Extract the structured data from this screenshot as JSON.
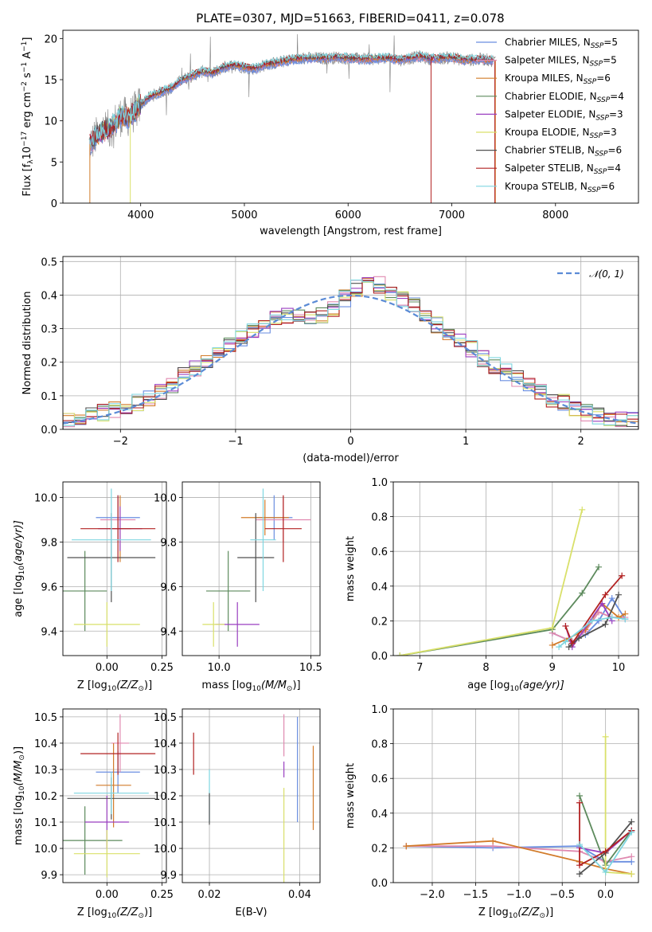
{
  "chart_data": [
    {
      "type": "line",
      "title": "PLATE=0307, MJD=51663, FIBERID=0411, z=0.078",
      "xlabel": "wavelength [Angstrom, rest frame]",
      "ylabel_main": "Flux [f",
      "ylabel_sub": "λ",
      "ylabel_rest": "10",
      "ylabel_exp": "−17",
      "ylabel_tail": " erg cm",
      "ylabel_exp2": "−2",
      "ylabel_tail2": " s",
      "ylabel_exp3": "−1",
      "ylabel_tail3": " A",
      "ylabel_exp4": "−1",
      "ylabel_end": "]",
      "xlim": [
        3250,
        8800
      ],
      "ylim": [
        0,
        21
      ],
      "xticks": [
        "4000",
        "5000",
        "6000",
        "7000",
        "8000"
      ],
      "xtick_values": [
        4000,
        5000,
        6000,
        7000,
        8000
      ],
      "yticks": [
        "0",
        "5",
        "10",
        "15",
        "20"
      ],
      "ytick_values": [
        0,
        5,
        10,
        15,
        20
      ],
      "grid": false,
      "legend_position": "top-right",
      "data_sketch": {
        "wavelength": [
          3500,
          3600,
          3700,
          3800,
          3900,
          4000,
          4100,
          4200,
          4300,
          4400,
          4500,
          4600,
          4700,
          4800,
          4900,
          5000,
          5100,
          5200,
          5300,
          5400,
          5500,
          5600,
          5700,
          5800,
          5900,
          6000,
          6100,
          6200,
          6300,
          6400,
          6500,
          6600,
          6700,
          6800,
          6900,
          7000,
          7100,
          7200,
          7300,
          7400
        ],
        "flux": [
          7,
          8.5,
          9,
          10.5,
          10.5,
          12,
          13,
          13.5,
          14,
          15,
          15.5,
          16,
          15.8,
          16.5,
          16.8,
          16.5,
          16.3,
          16.8,
          17,
          17.3,
          17.5,
          17.6,
          17.6,
          17.6,
          17.7,
          17.6,
          17.5,
          17.5,
          17.6,
          17.6,
          17.4,
          17.6,
          17.8,
          17.5,
          17.6,
          17.7,
          17.4,
          17.4,
          17.5,
          17.3
        ]
      },
      "series": [
        {
          "name": "Chabrier MILES, N",
          "sub": "SSP",
          "suffix": "=5",
          "color": "#6a8ee0"
        },
        {
          "name": "Salpeter MILES, N",
          "sub": "SSP",
          "suffix": "=5",
          "color": "#e08ab0"
        },
        {
          "name": "Kroupa MILES, N",
          "sub": "SSP",
          "suffix": "=6",
          "color": "#d27b2a"
        },
        {
          "name": "Chabrier ELODIE, N",
          "sub": "SSP",
          "suffix": "=4",
          "color": "#5c8a5c"
        },
        {
          "name": "Salpeter ELODIE, N",
          "sub": "SSP",
          "suffix": "=3",
          "color": "#9a3fc0"
        },
        {
          "name": "Kroupa ELODIE, N",
          "sub": "SSP",
          "suffix": "=3",
          "color": "#d9e06a"
        },
        {
          "name": "Chabrier STELIB, N",
          "sub": "SSP",
          "suffix": "=6",
          "color": "#505050"
        },
        {
          "name": "Salpeter STELIB, N",
          "sub": "SSP",
          "suffix": "=4",
          "color": "#b22222"
        },
        {
          "name": "Kroupa STELIB, N",
          "sub": "SSP",
          "suffix": "=6",
          "color": "#7fd6e0"
        }
      ],
      "data_color": "#808080"
    },
    {
      "type": "histogram",
      "xlabel": "(data-model)/error",
      "ylabel": "Normed distribution",
      "xlim": [
        -2.5,
        2.5
      ],
      "ylim": [
        0,
        0.515
      ],
      "xticks": [
        "−2",
        "−1",
        "0",
        "1",
        "2"
      ],
      "xtick_values": [
        -2,
        -1,
        0,
        1,
        2
      ],
      "yticks": [
        "0.0",
        "0.1",
        "0.2",
        "0.3",
        "0.4",
        "0.5"
      ],
      "ytick_values": [
        0,
        0.1,
        0.2,
        0.3,
        0.4,
        0.5
      ],
      "grid": true,
      "legend_position": "top-right",
      "normal_label": "𝒩(0, 1)",
      "normal_color": "#5b8bd6",
      "bin_width": 0.1,
      "bin_start": -2.5,
      "base_values": [
        0.03,
        0.03,
        0.04,
        0.05,
        0.06,
        0.07,
        0.08,
        0.09,
        0.11,
        0.13,
        0.16,
        0.18,
        0.2,
        0.22,
        0.25,
        0.27,
        0.29,
        0.31,
        0.33,
        0.34,
        0.34,
        0.33,
        0.34,
        0.36,
        0.39,
        0.42,
        0.43,
        0.43,
        0.41,
        0.39,
        0.37,
        0.34,
        0.31,
        0.29,
        0.26,
        0.24,
        0.21,
        0.19,
        0.17,
        0.15,
        0.13,
        0.11,
        0.09,
        0.08,
        0.06,
        0.05,
        0.04,
        0.03,
        0.03,
        0.03
      ]
    },
    {
      "type": "errorbar",
      "xlabel": "Z [log",
      "xlabel_sub": "10",
      "xlabel_tail": "(Z/Z",
      "xlabel_sun": "⊙",
      "xlabel_end": ")]",
      "ylabel": "age  [log",
      "ylabel_sub": "10",
      "ylabel_tail": "(age/yr)]",
      "xlim": [
        -0.2,
        0.27
      ],
      "ylim": [
        9.29,
        10.07
      ],
      "xticks": [
        "0.00",
        "0.25"
      ],
      "xtick_values": [
        0.0,
        0.25
      ],
      "yticks": [
        "9.4",
        "9.6",
        "9.8",
        "10.0"
      ],
      "ytick_values": [
        9.4,
        9.6,
        9.8,
        10.0
      ],
      "points": [
        {
          "x": 0.05,
          "y": 9.91,
          "xerr": 0.1,
          "yerr": 0.1,
          "c": 0
        },
        {
          "x": 0.05,
          "y": 9.9,
          "xerr": 0.08,
          "yerr": 0.1,
          "c": 1
        },
        {
          "x": 0.06,
          "y": 9.86,
          "xerr": 0.05,
          "yerr": 0.15,
          "c": 2
        },
        {
          "x": -0.1,
          "y": 9.58,
          "xerr": 0.1,
          "yerr": 0.18,
          "c": 3
        },
        {
          "x": 0.06,
          "y": 9.86,
          "xerr": 0.1,
          "yerr": 0.1,
          "c": 4
        },
        {
          "x": 0.0,
          "y": 9.43,
          "xerr": 0.15,
          "yerr": 0.1,
          "c": 5
        },
        {
          "x": 0.02,
          "y": 9.73,
          "xerr": 0.2,
          "yerr": 0.2,
          "c": 6
        },
        {
          "x": 0.05,
          "y": 9.86,
          "xerr": 0.17,
          "yerr": 0.15,
          "c": 7
        },
        {
          "x": 0.02,
          "y": 9.81,
          "xerr": 0.18,
          "yerr": 0.23,
          "c": 8
        }
      ]
    },
    {
      "type": "errorbar",
      "xlabel": "mass [log",
      "xlabel_sub": "10",
      "xlabel_tail": "(M/M",
      "xlabel_sun": "⊙",
      "xlabel_end": ")]",
      "xlim": [
        9.8,
        10.55
      ],
      "ylim": [
        9.29,
        10.07
      ],
      "xticks": [
        "10.0",
        "10.5"
      ],
      "xtick_values": [
        10.0,
        10.5
      ],
      "yticks": [
        "9.4",
        "9.6",
        "9.8",
        "10.0"
      ],
      "ytick_values": [
        9.4,
        9.6,
        9.8,
        10.0
      ],
      "points": [
        {
          "x": 10.3,
          "y": 9.91,
          "xerr": 0.1,
          "yerr": 0.1,
          "c": 0
        },
        {
          "x": 10.35,
          "y": 9.9,
          "xerr": 0.15,
          "yerr": 0.1,
          "c": 1
        },
        {
          "x": 10.25,
          "y": 9.91,
          "xerr": 0.13,
          "yerr": 0.08,
          "c": 2
        },
        {
          "x": 10.05,
          "y": 9.58,
          "xerr": 0.12,
          "yerr": 0.18,
          "c": 3
        },
        {
          "x": 10.1,
          "y": 9.43,
          "xerr": 0.12,
          "yerr": 0.1,
          "c": 4
        },
        {
          "x": 9.97,
          "y": 9.43,
          "xerr": 0.06,
          "yerr": 0.1,
          "c": 5
        },
        {
          "x": 10.2,
          "y": 9.73,
          "xerr": 0.1,
          "yerr": 0.2,
          "c": 6
        },
        {
          "x": 10.35,
          "y": 9.86,
          "xerr": 0.1,
          "yerr": 0.15,
          "c": 7
        },
        {
          "x": 10.24,
          "y": 9.81,
          "xerr": 0.07,
          "yerr": 0.23,
          "c": 8
        }
      ]
    },
    {
      "type": "line",
      "xlabel": "age  [log",
      "xlabel_sub": "10",
      "xlabel_tail": "(age/yr)]",
      "ylabel": "mass weight",
      "xlim": [
        6.6,
        10.3
      ],
      "ylim": [
        0,
        1.0
      ],
      "xticks": [
        "7",
        "8",
        "9",
        "10"
      ],
      "xtick_values": [
        7,
        8,
        9,
        10
      ],
      "yticks": [
        "0.0",
        "0.2",
        "0.4",
        "0.6",
        "0.8",
        "1.0"
      ],
      "ytick_values": [
        0,
        0.2,
        0.4,
        0.6,
        0.8,
        1.0
      ],
      "grid": true,
      "series": [
        {
          "c": 0,
          "x": [
            9.0,
            9.3,
            9.5,
            9.7,
            9.9,
            10.1
          ],
          "y": [
            0.13,
            0.08,
            0.12,
            0.2,
            0.33,
            0.21
          ]
        },
        {
          "c": 1,
          "x": [
            9.0,
            9.3,
            9.5,
            9.7,
            9.9,
            10.1
          ],
          "y": [
            0.13,
            0.08,
            0.14,
            0.25,
            0.22,
            0.22
          ]
        },
        {
          "c": 2,
          "x": [
            9.0,
            9.25,
            9.5,
            9.75,
            10.0,
            10.1
          ],
          "y": [
            0.06,
            0.1,
            0.15,
            0.3,
            0.22,
            0.24
          ]
        },
        {
          "c": 3,
          "x": [
            6.7,
            9.0,
            9.45,
            9.7
          ],
          "y": [
            0.0,
            0.15,
            0.36,
            0.51
          ]
        },
        {
          "c": 4,
          "x": [
            9.2,
            9.3,
            9.75,
            9.9
          ],
          "y": [
            0.17,
            0.05,
            0.3,
            0.2
          ]
        },
        {
          "c": 5,
          "x": [
            6.7,
            9.0,
            9.45
          ],
          "y": [
            0.0,
            0.16,
            0.84
          ]
        },
        {
          "c": 6,
          "x": [
            9.25,
            9.4,
            9.8,
            10.0
          ],
          "y": [
            0.05,
            0.1,
            0.18,
            0.35
          ]
        },
        {
          "c": 7,
          "x": [
            9.2,
            9.3,
            9.8,
            10.05
          ],
          "y": [
            0.17,
            0.07,
            0.35,
            0.46
          ]
        },
        {
          "c": 8,
          "x": [
            9.1,
            9.2,
            9.6,
            9.9,
            10.1
          ],
          "y": [
            0.05,
            0.08,
            0.2,
            0.22,
            0.21
          ]
        }
      ]
    },
    {
      "type": "errorbar",
      "xlabel": "Z [log",
      "xlabel_sub": "10",
      "xlabel_tail": "(Z/Z",
      "xlabel_sun": "⊙",
      "xlabel_end": ")]",
      "ylabel": "mass [log",
      "ylabel_sub": "10",
      "ylabel_tail": "(M/M",
      "ylabel_sun": "⊙",
      "ylabel_end": ")]",
      "xlim": [
        -0.2,
        0.27
      ],
      "ylim": [
        9.87,
        10.53
      ],
      "xticks": [
        "0.00",
        "0.25"
      ],
      "xtick_values": [
        0.0,
        0.25
      ],
      "yticks": [
        "9.9",
        "10.0",
        "10.1",
        "10.2",
        "10.3",
        "10.4",
        "10.5"
      ],
      "ytick_values": [
        9.9,
        10.0,
        10.1,
        10.2,
        10.3,
        10.4,
        10.5
      ],
      "points": [
        {
          "x": 0.05,
          "y": 10.29,
          "xerr": 0.1,
          "yerr": 0.08,
          "c": 0
        },
        {
          "x": 0.06,
          "y": 10.4,
          "xerr": 0.04,
          "yerr": 0.11,
          "c": 1
        },
        {
          "x": 0.03,
          "y": 10.24,
          "xerr": 0.08,
          "yerr": 0.16,
          "c": 2
        },
        {
          "x": -0.1,
          "y": 10.03,
          "xerr": 0.17,
          "yerr": 0.13,
          "c": 3
        },
        {
          "x": 0.0,
          "y": 10.1,
          "xerr": 0.1,
          "yerr": 0.1,
          "c": 4
        },
        {
          "x": 0.0,
          "y": 9.98,
          "xerr": 0.15,
          "yerr": 0.09,
          "c": 5
        },
        {
          "x": 0.02,
          "y": 10.19,
          "xerr": 0.2,
          "yerr": 0.08,
          "c": 6
        },
        {
          "x": 0.05,
          "y": 10.36,
          "xerr": 0.17,
          "yerr": 0.08,
          "c": 7
        },
        {
          "x": 0.02,
          "y": 10.21,
          "xerr": 0.17,
          "yerr": 0.08,
          "c": 8
        }
      ]
    },
    {
      "type": "errorbar",
      "xlabel": "E(B-V)",
      "xlim": [
        0.014,
        0.0445
      ],
      "ylim": [
        9.87,
        10.53
      ],
      "xticks": [
        "0.02",
        "0.04"
      ],
      "xtick_values": [
        0.02,
        0.04
      ],
      "yticks": [
        "9.9",
        "10.0",
        "10.1",
        "10.2",
        "10.3",
        "10.4",
        "10.5"
      ],
      "ytick_values": [
        9.9,
        10.0,
        10.1,
        10.2,
        10.3,
        10.4,
        10.5
      ],
      "points": [
        {
          "x": 0.02,
          "y": 10.2,
          "xerr": 0,
          "yerr": 0.1,
          "c": 8
        },
        {
          "x": 0.02,
          "y": 10.15,
          "xerr": 0,
          "yerr": 0.06,
          "c": 6
        },
        {
          "x": 0.0165,
          "y": 10.36,
          "xerr": 0,
          "yerr": 0.08,
          "c": 7
        },
        {
          "x": 0.0365,
          "y": 10.43,
          "xerr": 0,
          "yerr": 0.08,
          "c": 1
        },
        {
          "x": 0.0365,
          "y": 10.3,
          "xerr": 0,
          "yerr": 0.03,
          "c": 4
        },
        {
          "x": 0.0365,
          "y": 10.05,
          "xerr": 0,
          "yerr": 0.18,
          "c": 5
        },
        {
          "x": 0.0395,
          "y": 10.3,
          "xerr": 0,
          "yerr": 0.2,
          "c": 0
        },
        {
          "x": 0.043,
          "y": 10.23,
          "xerr": 0,
          "yerr": 0.16,
          "c": 2
        }
      ]
    },
    {
      "type": "line",
      "xlabel": "Z [log",
      "xlabel_sub": "10",
      "xlabel_tail": "(Z/Z",
      "xlabel_sun": "⊙",
      "xlabel_end": ")]",
      "ylabel": "mass weight",
      "xlim": [
        -2.45,
        0.38
      ],
      "ylim": [
        0,
        1.0
      ],
      "xticks": [
        "−2.0",
        "−1.5",
        "−1.0",
        "−0.5",
        "0.0"
      ],
      "xtick_values": [
        -2.0,
        -1.5,
        -1.0,
        -0.5,
        0.0
      ],
      "yticks": [
        "0.0",
        "0.2",
        "0.4",
        "0.6",
        "0.8",
        "1.0"
      ],
      "ytick_values": [
        0,
        0.2,
        0.4,
        0.6,
        0.8,
        1.0
      ],
      "grid": true,
      "series": [
        {
          "c": 0,
          "x": [
            -2.3,
            -1.3,
            -0.3,
            0.0,
            0.3
          ],
          "y": [
            0.21,
            0.2,
            0.21,
            0.12,
            0.12
          ]
        },
        {
          "c": 1,
          "x": [
            -2.3,
            -1.3,
            -0.3,
            0.0,
            0.3
          ],
          "y": [
            0.21,
            0.21,
            0.18,
            0.12,
            0.15
          ]
        },
        {
          "c": 2,
          "x": [
            -2.3,
            -1.3,
            -0.3,
            0.0,
            0.3
          ],
          "y": [
            0.21,
            0.24,
            0.12,
            0.08,
            0.05
          ]
        },
        {
          "c": 3,
          "x": [
            -0.3,
            0.0,
            0.3
          ],
          "y": [
            0.5,
            0.1,
            0.3
          ]
        },
        {
          "c": 4,
          "x": [
            -0.3,
            0.0,
            0.3
          ],
          "y": [
            0.2,
            0.17,
            0.3
          ]
        },
        {
          "c": 5,
          "x": [
            0.0,
            0.0,
            0.3
          ],
          "y": [
            0.84,
            0.06,
            0.05
          ]
        },
        {
          "c": 6,
          "x": [
            -0.3,
            0.0,
            0.3
          ],
          "y": [
            0.05,
            0.17,
            0.35
          ]
        },
        {
          "c": 7,
          "x": [
            -0.3,
            -0.3,
            0.0,
            0.3
          ],
          "y": [
            0.46,
            0.1,
            0.18,
            0.3
          ]
        },
        {
          "c": 8,
          "x": [
            -0.3,
            0.0,
            0.3
          ],
          "y": [
            0.22,
            0.06,
            0.29
          ]
        }
      ]
    }
  ]
}
